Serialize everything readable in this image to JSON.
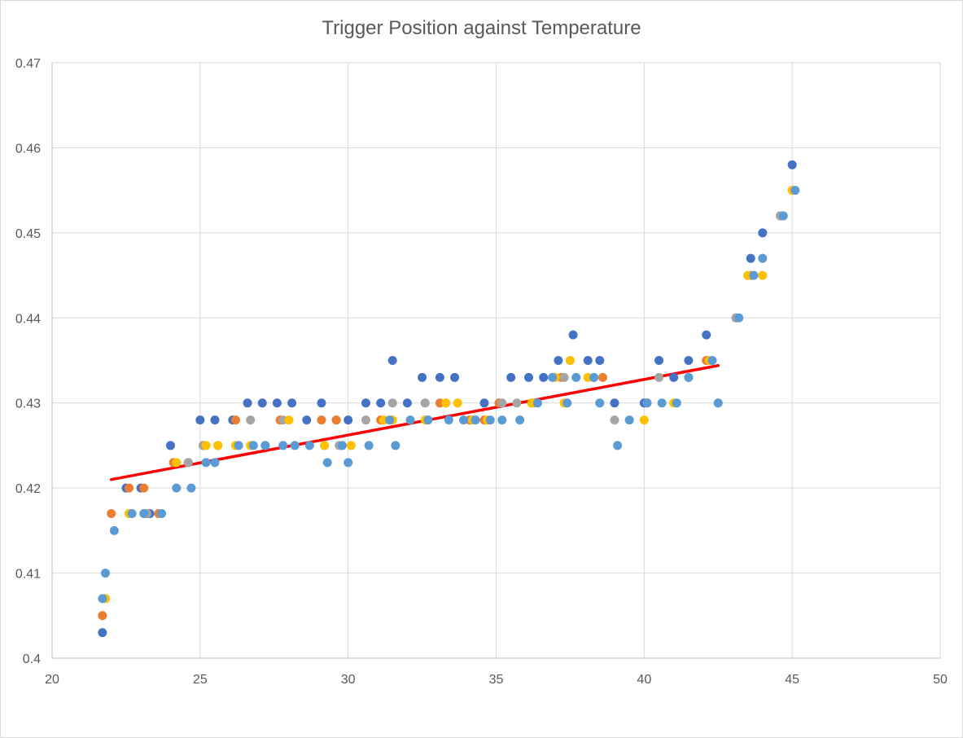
{
  "chart_data": {
    "type": "scatter",
    "title": "Trigger Position against Temperature",
    "xlabel": "",
    "ylabel": "",
    "xlim": [
      20,
      50
    ],
    "ylim": [
      0.4,
      0.47
    ],
    "x_ticks": [
      20,
      25,
      30,
      35,
      40,
      45,
      50
    ],
    "x_tick_labels": [
      "20",
      "25",
      "30",
      "35",
      "40",
      "45",
      "50"
    ],
    "y_ticks": [
      0.4,
      0.41,
      0.42,
      0.43,
      0.44,
      0.45,
      0.46,
      0.47
    ],
    "y_tick_labels": [
      "0.4",
      "0.41",
      "0.42",
      "0.43",
      "0.44",
      "0.45",
      "0.46",
      "0.47"
    ],
    "grid": true,
    "legend": "none",
    "series": [
      {
        "color": "#4472c4",
        "points": [
          [
            21.7,
            0.403
          ],
          [
            22.5,
            0.42
          ],
          [
            23.0,
            0.42
          ],
          [
            23.3,
            0.417
          ],
          [
            24.0,
            0.425
          ],
          [
            24.6,
            0.423
          ],
          [
            25.0,
            0.428
          ],
          [
            25.5,
            0.428
          ],
          [
            26.1,
            0.428
          ],
          [
            26.6,
            0.43
          ],
          [
            27.1,
            0.43
          ],
          [
            27.6,
            0.43
          ],
          [
            28.1,
            0.43
          ],
          [
            28.6,
            0.428
          ],
          [
            29.1,
            0.43
          ],
          [
            29.6,
            0.428
          ],
          [
            30.0,
            0.428
          ],
          [
            30.6,
            0.43
          ],
          [
            31.1,
            0.43
          ],
          [
            31.5,
            0.435
          ],
          [
            32.0,
            0.43
          ],
          [
            32.5,
            0.433
          ],
          [
            33.1,
            0.433
          ],
          [
            33.6,
            0.433
          ],
          [
            34.6,
            0.43
          ],
          [
            35.1,
            0.43
          ],
          [
            35.5,
            0.433
          ],
          [
            36.1,
            0.433
          ],
          [
            36.6,
            0.433
          ],
          [
            37.1,
            0.435
          ],
          [
            37.6,
            0.438
          ],
          [
            38.1,
            0.435
          ],
          [
            38.5,
            0.435
          ],
          [
            39.0,
            0.43
          ],
          [
            40.0,
            0.43
          ],
          [
            40.5,
            0.435
          ],
          [
            41.0,
            0.433
          ],
          [
            41.5,
            0.435
          ],
          [
            42.1,
            0.438
          ],
          [
            43.1,
            0.44
          ],
          [
            43.6,
            0.447
          ],
          [
            44.0,
            0.45
          ],
          [
            44.6,
            0.452
          ],
          [
            45.0,
            0.458
          ]
        ]
      },
      {
        "color": "#ed7d31",
        "points": [
          [
            21.7,
            0.405
          ],
          [
            22.0,
            0.417
          ],
          [
            22.6,
            0.42
          ],
          [
            23.1,
            0.42
          ],
          [
            23.6,
            0.417
          ],
          [
            24.1,
            0.423
          ],
          [
            25.1,
            0.425
          ],
          [
            25.6,
            0.425
          ],
          [
            26.2,
            0.428
          ],
          [
            27.7,
            0.428
          ],
          [
            29.1,
            0.428
          ],
          [
            29.6,
            0.428
          ],
          [
            31.1,
            0.428
          ],
          [
            32.6,
            0.43
          ],
          [
            33.1,
            0.43
          ],
          [
            34.1,
            0.428
          ],
          [
            34.6,
            0.428
          ],
          [
            35.1,
            0.43
          ],
          [
            36.2,
            0.43
          ],
          [
            37.2,
            0.433
          ],
          [
            38.6,
            0.433
          ],
          [
            40.1,
            0.43
          ],
          [
            42.1,
            0.435
          ],
          [
            43.6,
            0.445
          ],
          [
            44.6,
            0.452
          ],
          [
            45.0,
            0.455
          ]
        ]
      },
      {
        "color": "#a5a5a5",
        "points": [
          [
            21.8,
            0.407
          ],
          [
            22.6,
            0.417
          ],
          [
            23.2,
            0.417
          ],
          [
            24.6,
            0.423
          ],
          [
            25.1,
            0.425
          ],
          [
            26.7,
            0.428
          ],
          [
            27.2,
            0.425
          ],
          [
            27.8,
            0.428
          ],
          [
            29.2,
            0.425
          ],
          [
            29.7,
            0.425
          ],
          [
            30.6,
            0.428
          ],
          [
            31.5,
            0.43
          ],
          [
            32.6,
            0.43
          ],
          [
            33.3,
            0.43
          ],
          [
            34.2,
            0.428
          ],
          [
            35.2,
            0.43
          ],
          [
            35.7,
            0.43
          ],
          [
            36.3,
            0.43
          ],
          [
            37.3,
            0.433
          ],
          [
            38.3,
            0.433
          ],
          [
            39.0,
            0.428
          ],
          [
            40.5,
            0.433
          ],
          [
            41.5,
            0.433
          ],
          [
            42.5,
            0.43
          ],
          [
            43.1,
            0.44
          ],
          [
            44.6,
            0.452
          ]
        ]
      },
      {
        "color": "#ffc000",
        "points": [
          [
            21.8,
            0.407
          ],
          [
            22.6,
            0.417
          ],
          [
            23.1,
            0.417
          ],
          [
            24.2,
            0.423
          ],
          [
            25.2,
            0.425
          ],
          [
            25.6,
            0.425
          ],
          [
            26.2,
            0.425
          ],
          [
            26.7,
            0.425
          ],
          [
            28.0,
            0.428
          ],
          [
            29.2,
            0.425
          ],
          [
            30.1,
            0.425
          ],
          [
            31.2,
            0.428
          ],
          [
            31.5,
            0.428
          ],
          [
            32.6,
            0.428
          ],
          [
            33.3,
            0.43
          ],
          [
            33.7,
            0.43
          ],
          [
            34.2,
            0.428
          ],
          [
            34.7,
            0.428
          ],
          [
            36.2,
            0.43
          ],
          [
            37.0,
            0.433
          ],
          [
            37.3,
            0.43
          ],
          [
            37.5,
            0.435
          ],
          [
            38.1,
            0.433
          ],
          [
            40.0,
            0.428
          ],
          [
            41.0,
            0.43
          ],
          [
            42.2,
            0.435
          ],
          [
            42.5,
            0.43
          ],
          [
            43.5,
            0.445
          ],
          [
            44.0,
            0.445
          ],
          [
            45.0,
            0.455
          ]
        ]
      },
      {
        "color": "#5b9bd5",
        "points": [
          [
            21.7,
            0.407
          ],
          [
            21.8,
            0.41
          ],
          [
            22.1,
            0.415
          ],
          [
            22.7,
            0.417
          ],
          [
            23.1,
            0.417
          ],
          [
            23.7,
            0.417
          ],
          [
            24.2,
            0.42
          ],
          [
            24.7,
            0.42
          ],
          [
            25.2,
            0.423
          ],
          [
            25.5,
            0.423
          ],
          [
            26.3,
            0.425
          ],
          [
            26.8,
            0.425
          ],
          [
            27.2,
            0.425
          ],
          [
            27.8,
            0.425
          ],
          [
            28.2,
            0.425
          ],
          [
            28.7,
            0.425
          ],
          [
            29.3,
            0.423
          ],
          [
            29.8,
            0.425
          ],
          [
            30.0,
            0.423
          ],
          [
            30.7,
            0.425
          ],
          [
            31.4,
            0.428
          ],
          [
            31.6,
            0.425
          ],
          [
            32.1,
            0.428
          ],
          [
            32.7,
            0.428
          ],
          [
            33.4,
            0.428
          ],
          [
            33.9,
            0.428
          ],
          [
            34.3,
            0.428
          ],
          [
            34.8,
            0.428
          ],
          [
            35.2,
            0.428
          ],
          [
            35.8,
            0.428
          ],
          [
            36.4,
            0.43
          ],
          [
            36.9,
            0.433
          ],
          [
            37.4,
            0.43
          ],
          [
            37.7,
            0.433
          ],
          [
            38.3,
            0.433
          ],
          [
            38.5,
            0.43
          ],
          [
            39.1,
            0.425
          ],
          [
            39.5,
            0.428
          ],
          [
            40.1,
            0.43
          ],
          [
            40.6,
            0.43
          ],
          [
            41.1,
            0.43
          ],
          [
            41.5,
            0.433
          ],
          [
            42.3,
            0.435
          ],
          [
            42.5,
            0.43
          ],
          [
            43.2,
            0.44
          ],
          [
            43.7,
            0.445
          ],
          [
            44.0,
            0.447
          ],
          [
            44.7,
            0.452
          ],
          [
            45.1,
            0.455
          ]
        ]
      }
    ],
    "trendline": {
      "color": "#ff0000",
      "x": [
        22.0,
        42.5
      ],
      "y": [
        0.421,
        0.4344
      ]
    }
  }
}
